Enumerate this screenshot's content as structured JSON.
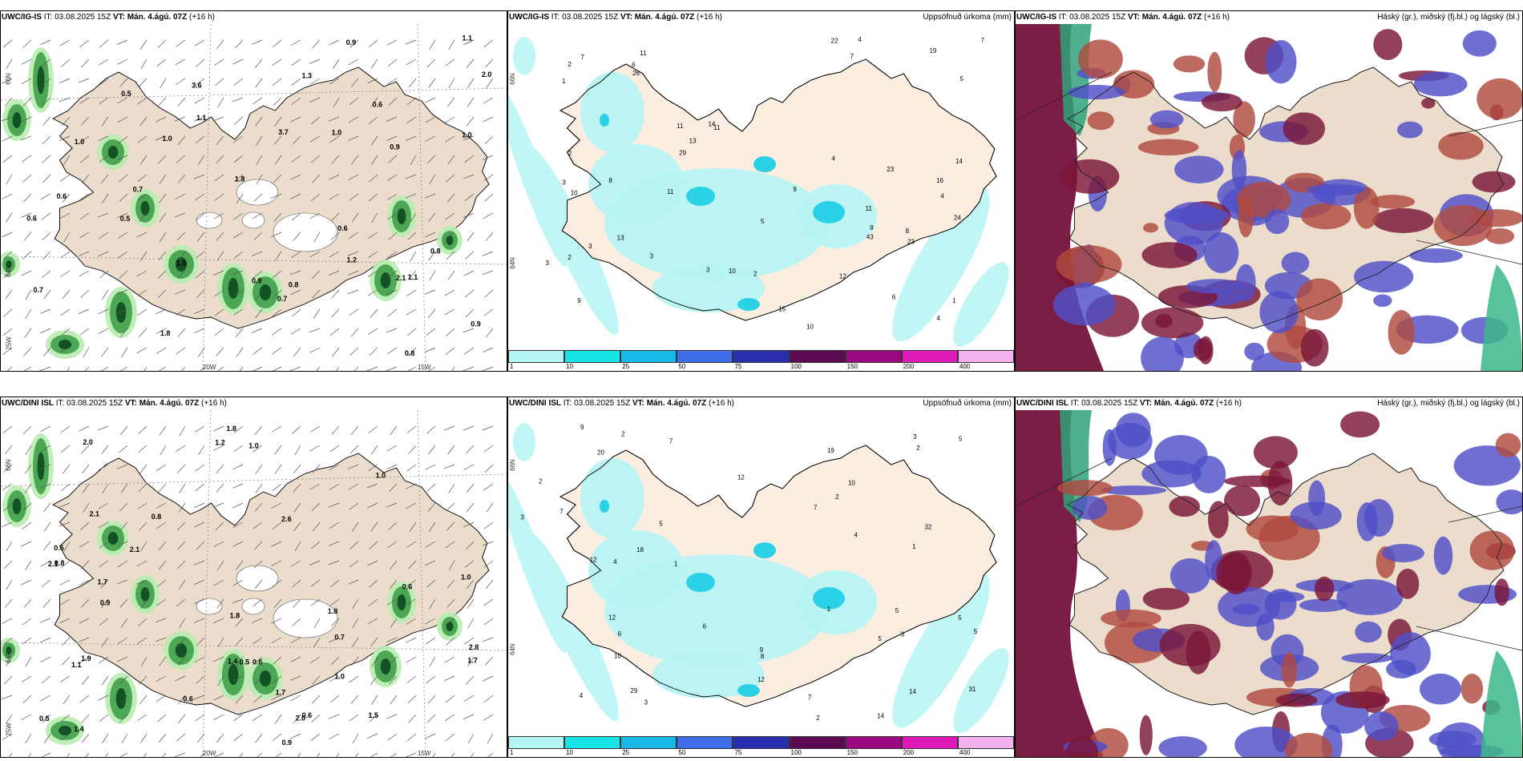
{
  "panels": [
    {
      "model": "UWC/IG-IS",
      "it_label": "IT:",
      "it_value": "03.08.2025 15Z",
      "vt_label": "VT:",
      "vt_value": "Mán. 4.ágú. 07Z",
      "lead": "(+16 h)",
      "right_title": "",
      "type": "wind",
      "coords": [
        "66N",
        "64N",
        "20W",
        "15W",
        "25W"
      ]
    },
    {
      "model": "UWC/IG-IS",
      "it_label": "IT:",
      "it_value": "03.08.2025 15Z",
      "vt_label": "VT:",
      "vt_value": "Mán. 4.ágú. 07Z",
      "lead": "(+16 h)",
      "right_title": "Uppsöfnuð úrkoma (mm)",
      "type": "precip",
      "coords": [
        "66N",
        "64N"
      ]
    },
    {
      "model": "UWC/IG-IS",
      "it_label": "IT:",
      "it_value": "03.08.2025 15Z",
      "vt_label": "VT:",
      "vt_value": "Mán. 4.ágú. 07Z",
      "lead": "(+16 h)",
      "right_title": "Háský (gr.), miðský (fj.bl.) og lágský (bl.)",
      "type": "cloud",
      "coords": []
    },
    {
      "model": "UWC/DINI ISL",
      "it_label": "IT:",
      "it_value": "03.08.2025 15Z",
      "vt_label": "VT:",
      "vt_value": "Mán. 4.ágú. 07Z",
      "lead": "(+16 h)",
      "right_title": "",
      "type": "wind",
      "coords": [
        "66N",
        "64N",
        "20W",
        "15W",
        "25W"
      ]
    },
    {
      "model": "UWC/DINI ISL",
      "it_label": "IT:",
      "it_value": "03.08.2025 15Z",
      "vt_label": "VT:",
      "vt_value": "Mán. 4.ágú. 07Z",
      "lead": "(+16 h)",
      "right_title": "Uppsöfnuð úrkoma (mm)",
      "type": "precip",
      "coords": [
        "66N",
        "64N"
      ]
    },
    {
      "model": "UWC/DINI ISL",
      "it_label": "IT:",
      "it_value": "03.08.2025 15Z",
      "vt_label": "VT:",
      "vt_value": "Mán. 4.ágú. 07Z",
      "lead": "(+16 h)",
      "right_title": "Háský (gr.), miðský (fj.bl.) og lágský (bl.)",
      "type": "cloud",
      "coords": []
    }
  ],
  "colorbar": {
    "ticks": [
      "1",
      "10",
      "25",
      "50",
      "75",
      "100",
      "150",
      "200",
      "400"
    ],
    "colors": [
      "#b6f5f5",
      "#17e5e5",
      "#18b8e8",
      "#3f6ee8",
      "#2a2fb0",
      "#5a0a50",
      "#9a0a7e",
      "#e01ab8",
      "#f2b0ee"
    ]
  },
  "wind_labels_top": [
    "0.5",
    "1.3",
    "0.7",
    "0.6",
    "0.6",
    "1.2",
    "1.0",
    "0.8",
    "0.9",
    "1.0",
    "0.9",
    "0.8",
    "0.9",
    "0.5",
    "1.0",
    "0.9",
    "1.1",
    "1.8",
    "1.1",
    "1.0",
    "0.8",
    "0.6",
    "1.5",
    "0.7",
    "3.7",
    "2.1",
    "1.1",
    "0.6",
    "0.7",
    "2.0",
    "1.8",
    "3.6"
  ],
  "wind_labels_bottom": [
    "1.7",
    "2.0",
    "2.1",
    "2.6",
    "1.5",
    "0.6",
    "1.0",
    "1.1",
    "1.8",
    "0.6",
    "2.0",
    "0.8",
    "1.8",
    "0.6",
    "0.7",
    "0.9",
    "0.9",
    "1.0",
    "1.4",
    "2.8",
    "1.2",
    "1.0",
    "1.7",
    "1.4",
    "1.7",
    "2.1",
    "0.6",
    "0.8",
    "2.1",
    "0.5",
    "0.6",
    "1.0",
    "1.9",
    "1.8",
    "0.5"
  ],
  "precip_labels_top": [
    "11",
    "4",
    "9",
    "11",
    "11",
    "6",
    "2",
    "7",
    "11",
    "10",
    "1",
    "3",
    "2",
    "1",
    "3",
    "14",
    "5",
    "9",
    "14",
    "13",
    "7",
    "19",
    "29",
    "24",
    "22",
    "6",
    "8",
    "10",
    "26",
    "23",
    "15",
    "12",
    "13",
    "11",
    "16",
    "23",
    "43",
    "8",
    "2",
    "3",
    "5",
    "4",
    "4",
    "10",
    "8",
    "3",
    "3",
    "7",
    "4",
    "2"
  ],
  "precip_labels_bottom": [
    "5",
    "14",
    "8",
    "4",
    "9",
    "5",
    "7",
    "10",
    "2",
    "1",
    "1",
    "2",
    "3",
    "4",
    "3",
    "20",
    "10",
    "29",
    "19",
    "12",
    "7",
    "5",
    "14",
    "12",
    "5",
    "7",
    "5",
    "6",
    "12",
    "18",
    "12",
    "32",
    "31",
    "7",
    "5",
    "4",
    "2",
    "3",
    "1",
    "9",
    "3",
    "2",
    "6",
    "2"
  ]
}
